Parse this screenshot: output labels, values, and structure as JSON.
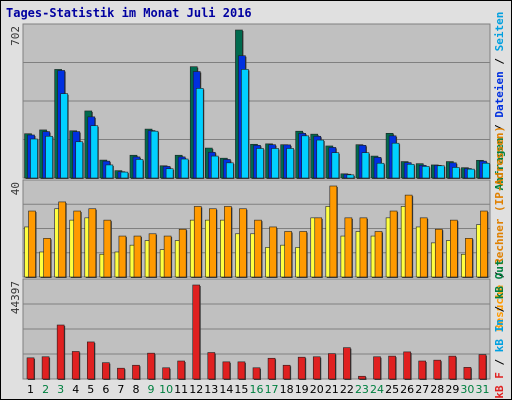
{
  "title": "Tages-Statistik im Monat Juli 2016",
  "colors": {
    "background": "#e0e0e0",
    "panel": "#c0c0c0",
    "hits": "#006a4e",
    "files": "#0030e0",
    "pages": "#00d0ff",
    "visits": "#ff9a00",
    "sites": "#ffff40",
    "kbytes": "#e02020",
    "weekday": "#000000",
    "weekend": "#008040"
  },
  "side_labels": {
    "top": [
      {
        "text": "Anfragen",
        "color": "#008040"
      },
      {
        "text": " / ",
        "color": "#000000"
      },
      {
        "text": "Dateien",
        "color": "#0030e0"
      },
      {
        "text": " / ",
        "color": "#000000"
      },
      {
        "text": "Seiten",
        "color": "#00a0e0"
      }
    ],
    "mid": [
      {
        "text": "Besuche",
        "color": "#ff9a00"
      },
      {
        "text": " / ",
        "color": "#000000"
      },
      {
        "text": "Rechner (IP-Adressen)",
        "color": "#e08000"
      }
    ],
    "bottom": [
      {
        "text": "kB F",
        "color": "#e02020"
      },
      {
        "text": " / ",
        "color": "#000000"
      },
      {
        "text": "kB In",
        "color": "#00a0e0"
      },
      {
        "text": " / ",
        "color": "#000000"
      },
      {
        "text": "kB Out",
        "color": "#008040"
      }
    ]
  },
  "chart_data": [
    {
      "type": "bar",
      "panel": "top",
      "ymax_label": "702",
      "ylim": [
        0,
        702
      ],
      "categories": [
        "1",
        "2",
        "3",
        "4",
        "5",
        "6",
        "7",
        "8",
        "9",
        "10",
        "11",
        "12",
        "13",
        "14",
        "15",
        "16",
        "17",
        "18",
        "19",
        "20",
        "21",
        "22",
        "23",
        "24",
        "25",
        "26",
        "27",
        "28",
        "29",
        "30",
        "31"
      ],
      "series": [
        {
          "name": "Anfragen",
          "values": [
            210,
            228,
            515,
            224,
            318,
            85,
            35,
            108,
            232,
            58,
            108,
            528,
            142,
            94,
            702,
            160,
            162,
            158,
            222,
            208,
            152,
            20,
            158,
            104,
            212,
            78,
            68,
            62,
            78,
            49,
            84
          ]
        },
        {
          "name": "Dateien",
          "values": [
            204,
            220,
            510,
            220,
            290,
            80,
            30,
            100,
            225,
            55,
            100,
            505,
            122,
            88,
            580,
            155,
            158,
            157,
            212,
            198,
            145,
            18,
            155,
            98,
            200,
            73,
            60,
            60,
            72,
            45,
            80
          ]
        },
        {
          "name": "Seiten",
          "values": [
            185,
            198,
            400,
            172,
            248,
            62,
            28,
            88,
            222,
            44,
            90,
            425,
            104,
            72,
            515,
            140,
            140,
            140,
            200,
            180,
            120,
            15,
            120,
            70,
            165,
            65,
            55,
            58,
            50,
            42,
            70
          ]
        }
      ]
    },
    {
      "type": "bar",
      "panel": "mid",
      "ymax_label": "40",
      "ylim": [
        0,
        40
      ],
      "categories": [
        "1",
        "2",
        "3",
        "4",
        "5",
        "6",
        "7",
        "8",
        "9",
        "10",
        "11",
        "12",
        "13",
        "14",
        "15",
        "16",
        "17",
        "18",
        "19",
        "20",
        "21",
        "22",
        "23",
        "24",
        "25",
        "26",
        "27",
        "28",
        "29",
        "30",
        "31"
      ],
      "series": [
        {
          "name": "Besuche",
          "values": [
            29,
            17,
            33,
            29,
            30,
            25,
            18,
            18,
            19,
            18,
            21,
            31,
            30,
            31,
            30,
            25,
            22,
            20,
            20,
            26,
            40,
            26,
            26,
            20,
            29,
            36,
            26,
            21,
            25,
            17,
            29
          ]
        },
        {
          "name": "Rechner (IP-Adressen)",
          "values": [
            22,
            11,
            30,
            25,
            26,
            10,
            11,
            14,
            16,
            12,
            16,
            25,
            25,
            25,
            19,
            19,
            13,
            14,
            13,
            26,
            31,
            18,
            20,
            18,
            26,
            31,
            22,
            15,
            16,
            10,
            23
          ]
        }
      ]
    },
    {
      "type": "bar",
      "panel": "bottom",
      "ymax_label": "44397",
      "ylim": [
        0,
        44397
      ],
      "categories": [
        "1",
        "2",
        "3",
        "4",
        "5",
        "6",
        "7",
        "8",
        "9",
        "10",
        "11",
        "12",
        "13",
        "14",
        "15",
        "16",
        "17",
        "18",
        "19",
        "20",
        "21",
        "22",
        "23",
        "24",
        "25",
        "26",
        "27",
        "28",
        "29",
        "30",
        "31"
      ],
      "series": [
        {
          "name": "kB F",
          "values": [
            10000,
            10500,
            25500,
            13000,
            17500,
            7700,
            5100,
            6500,
            12200,
            5300,
            8500,
            44397,
            12500,
            8100,
            8100,
            5300,
            9800,
            6500,
            10300,
            10500,
            12000,
            14800,
            1300,
            10500,
            10800,
            12800,
            8500,
            8900,
            10800,
            5500,
            11500
          ]
        }
      ]
    }
  ]
}
